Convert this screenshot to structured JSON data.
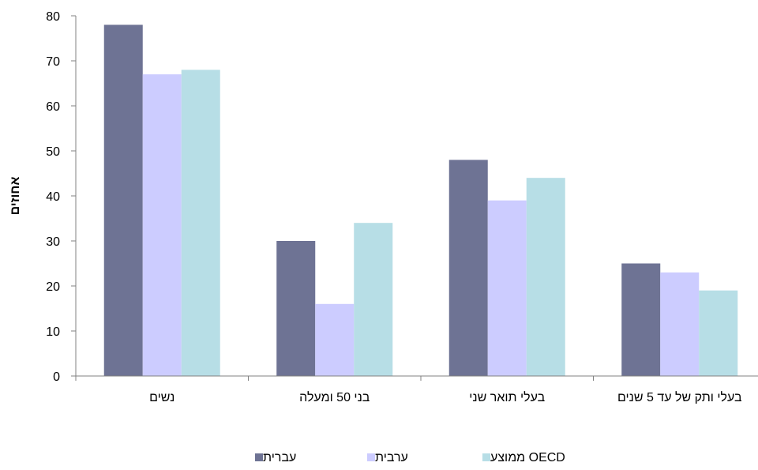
{
  "chart_data": {
    "type": "bar",
    "categories": [
      "נשים",
      "בני 50 ומעלה",
      "בעלי תואר שני",
      "בעלי ותק של עד 5 שנים"
    ],
    "series": [
      {
        "name": "עברית",
        "color": "#6e7394",
        "values": [
          78,
          30,
          48,
          25
        ]
      },
      {
        "name": "ערבית",
        "color": "#ccccff",
        "values": [
          67,
          16,
          39,
          23
        ]
      },
      {
        "name": "ממוצע OECD",
        "color": "#b7dee6",
        "values": [
          68,
          34,
          44,
          19
        ]
      }
    ],
    "ylabel": "אחוזים",
    "ylim": [
      0,
      80
    ],
    "yticks": [
      0,
      10,
      20,
      30,
      40,
      50,
      60,
      70,
      80
    ],
    "grid": false,
    "legend_position": "bottom"
  }
}
